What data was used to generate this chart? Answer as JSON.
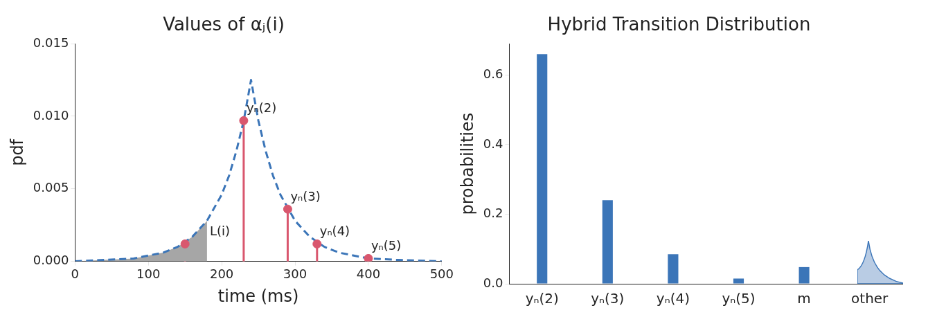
{
  "chart_data": [
    {
      "type": "line",
      "title": "Values of αⱼ(i)",
      "xlabel": "time (ms)",
      "ylabel": "pdf",
      "xlim": [
        0,
        500
      ],
      "xticks": [
        0,
        100,
        200,
        300,
        400,
        500
      ],
      "ylim": [
        0,
        0.015
      ],
      "yticks": [
        {
          "value": 0,
          "label": "0.000"
        },
        {
          "value": 0.005,
          "label": "0.005"
        },
        {
          "value": 0.01,
          "label": "0.010"
        },
        {
          "value": 0.015,
          "label": "0.015"
        }
      ],
      "grid": false,
      "legend": false,
      "series": [
        {
          "type": "area",
          "color": "#a6a6a6",
          "x": [
            0,
            40,
            80,
            120,
            140,
            160,
            180
          ],
          "values": [
            0.0,
            0.0001,
            0.0002,
            0.0006,
            0.001,
            0.0017,
            0.0028
          ]
        },
        {
          "type": "line",
          "line_style": "dashed",
          "color": "#3b75b8",
          "x": [
            0,
            40,
            80,
            120,
            140,
            160,
            180,
            200,
            210,
            220,
            230,
            240,
            250,
            260,
            270,
            280,
            300,
            320,
            340,
            360,
            400,
            440,
            500
          ],
          "values": [
            0.0,
            0.0001,
            0.0002,
            0.0006,
            0.001,
            0.0017,
            0.0028,
            0.0046,
            0.0059,
            0.0076,
            0.0097,
            0.0125,
            0.0097,
            0.0076,
            0.0059,
            0.0046,
            0.0028,
            0.0017,
            0.001,
            0.0006,
            0.0002,
            0.0001,
            0.0
          ]
        },
        {
          "type": "lollipop",
          "color": "#d9576e",
          "x": [
            150,
            230,
            290,
            330,
            400
          ],
          "values": [
            0.0012,
            0.0097,
            0.0036,
            0.0012,
            0.0002
          ]
        }
      ],
      "annotations": [
        {
          "text": "yₙ(2)",
          "x": 230,
          "y": 0.0097
        },
        {
          "text": "yₙ(3)",
          "x": 290,
          "y": 0.0036
        },
        {
          "text": "yₙ(4)",
          "x": 330,
          "y": 0.0012
        },
        {
          "text": "yₙ(5)",
          "x": 400,
          "y": 0.0002
        },
        {
          "text": "L(i)",
          "x": 180,
          "y": 0.0012
        }
      ]
    },
    {
      "type": "bar",
      "title": "Hybrid Transition Distribution",
      "ylabel": "probabilities",
      "categories": [
        "yₙ(2)",
        "yₙ(3)",
        "yₙ(4)",
        "yₙ(5)",
        "m",
        "other"
      ],
      "values": [
        0.66,
        0.24,
        0.085,
        0.015,
        0.048,
        null
      ],
      "color": "#3b75b8",
      "ylim": [
        0,
        0.69
      ],
      "yticks": [
        {
          "value": 0,
          "label": "0.0"
        },
        {
          "value": 0.2,
          "label": "0.2"
        },
        {
          "value": 0.4,
          "label": "0.4"
        },
        {
          "value": 0.6,
          "label": "0.6"
        }
      ],
      "grid": false,
      "legend": false
    }
  ]
}
